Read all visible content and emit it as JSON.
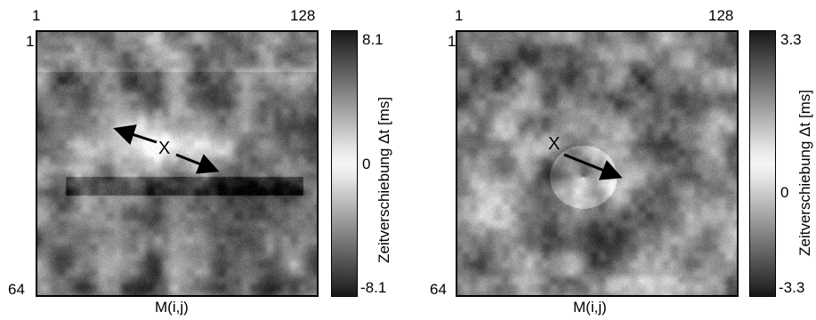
{
  "panels": [
    {
      "axis_top_left": "1",
      "axis_top_right": "128",
      "axis_left_top": "1",
      "axis_left_bottom": "64",
      "xlabel": "M(i,j)",
      "marker": "X",
      "colorbar": {
        "max_label": "8.1",
        "mid_label": "0",
        "min_label": "-8.1",
        "label": "Zeitverschiebung Δt  [ms]"
      }
    },
    {
      "axis_top_left": "1",
      "axis_top_right": "128",
      "axis_left_top": "1",
      "axis_left_bottom": "64",
      "xlabel": "M(i,j)",
      "marker": "X",
      "colorbar": {
        "max_label": "3.3",
        "mid_label": "0",
        "min_label": "-3.3",
        "label": "Zeitverschiebung Δt [ms]"
      }
    }
  ]
}
